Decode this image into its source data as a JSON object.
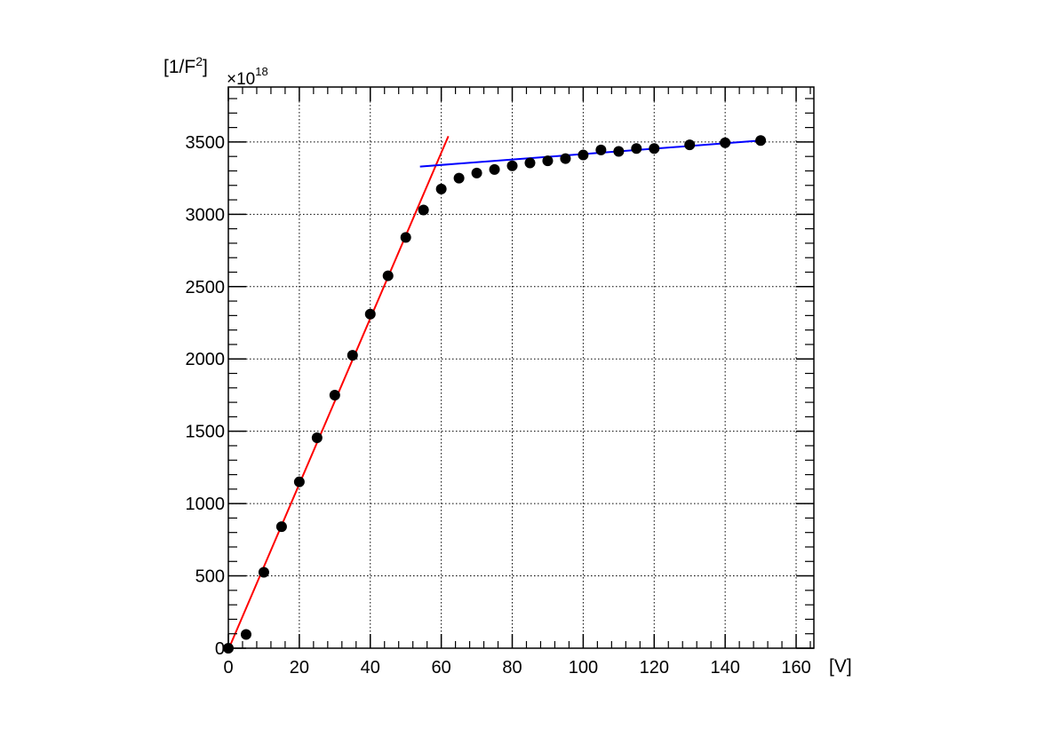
{
  "chart_data": {
    "type": "scatter",
    "title": "",
    "xlabel": "[V]",
    "ylabel": "[1/F",
    "ylabel_superscript": "2",
    "ylabel_close": "]",
    "y_exponent_base": "×10",
    "y_exponent": "18",
    "xlim": [
      0,
      165
    ],
    "ylim": [
      0,
      3880
    ],
    "x_ticks": [
      0,
      20,
      40,
      60,
      80,
      100,
      120,
      140,
      160
    ],
    "x_tick_labels": [
      "0",
      "20",
      "40",
      "60",
      "80",
      "100",
      "120",
      "140",
      "160"
    ],
    "y_ticks": [
      0,
      500,
      1000,
      1500,
      2000,
      2500,
      3000,
      3500
    ],
    "y_tick_labels": [
      "0",
      "500",
      "1000",
      "1500",
      "2000",
      "2500",
      "3000",
      "3500"
    ],
    "grid": true,
    "legend": "none",
    "series": [
      {
        "marker": "circle",
        "color": "#000000",
        "points": [
          [
            0,
            0
          ],
          [
            5,
            95
          ],
          [
            10,
            525
          ],
          [
            15,
            840
          ],
          [
            20,
            1150
          ],
          [
            25,
            1455
          ],
          [
            30,
            1750
          ],
          [
            35,
            2025
          ],
          [
            40,
            2310
          ],
          [
            45,
            2575
          ],
          [
            50,
            2840
          ],
          [
            55,
            3030
          ],
          [
            60,
            3175
          ],
          [
            65,
            3250
          ],
          [
            70,
            3285
          ],
          [
            75,
            3310
          ],
          [
            80,
            3335
          ],
          [
            85,
            3355
          ],
          [
            90,
            3370
          ],
          [
            95,
            3385
          ],
          [
            100,
            3410
          ],
          [
            105,
            3445
          ],
          [
            110,
            3435
          ],
          [
            115,
            3455
          ],
          [
            120,
            3455
          ],
          [
            130,
            3480
          ],
          [
            140,
            3495
          ],
          [
            150,
            3510
          ]
        ]
      }
    ],
    "fits": [
      {
        "color": "#ff0000",
        "x": [
          0,
          62
        ],
        "y": [
          -10,
          3540
        ]
      },
      {
        "color": "#0000ff",
        "x": [
          54,
          150
        ],
        "y": [
          3330,
          3510
        ]
      }
    ]
  }
}
